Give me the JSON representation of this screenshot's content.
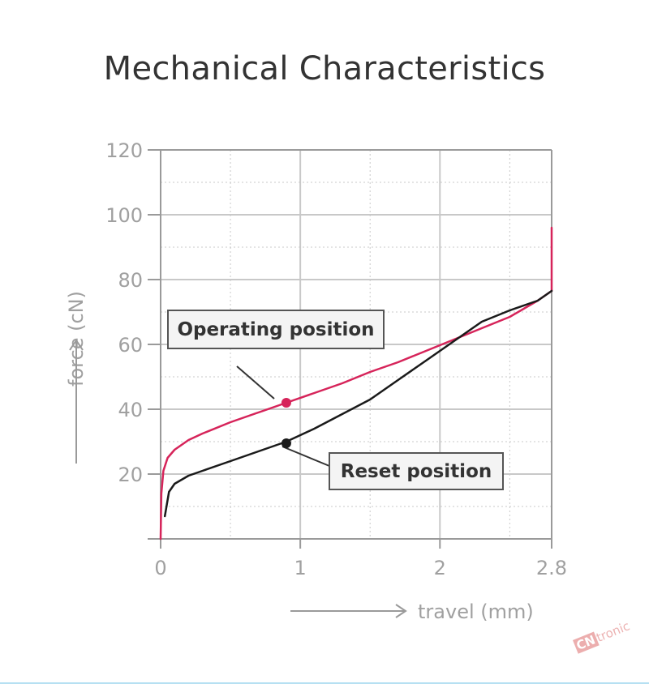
{
  "title": "Mechanical Characteristics",
  "watermark": {
    "prefix": "CN",
    "suffix": "tronic"
  },
  "colors": {
    "operating": "#d6245a",
    "reset": "#1a1a1a",
    "grid": "#c8c8c8",
    "axis": "#9a9a9a",
    "ticks": "#a0a0a0"
  },
  "chart_data": {
    "type": "line",
    "title": "Mechanical Characteristics",
    "xlabel": "travel (mm)",
    "ylabel": "force (cN)",
    "xlim": [
      0,
      2.8
    ],
    "ylim": [
      0,
      120
    ],
    "x_ticks": [
      0,
      1,
      2,
      2.8
    ],
    "x_tick_labels": [
      "0",
      "1",
      "2",
      "2.8"
    ],
    "y_ticks": [
      20,
      40,
      60,
      80,
      100,
      120
    ],
    "y_tick_labels": [
      "20",
      "40",
      "60",
      "80",
      "100",
      "120"
    ],
    "grid": true,
    "series": [
      {
        "name": "Operating position",
        "color": "#d6245a",
        "x": [
          0.0,
          0.005,
          0.02,
          0.05,
          0.1,
          0.2,
          0.3,
          0.5,
          0.7,
          0.9,
          1.1,
          1.3,
          1.5,
          1.7,
          1.9,
          2.1,
          2.3,
          2.5,
          2.6,
          2.7,
          2.8,
          2.8
        ],
        "y": [
          0,
          14,
          21,
          25,
          27.5,
          30.5,
          32.5,
          36,
          39,
          42,
          45,
          48,
          51.5,
          54.5,
          58,
          61.5,
          65,
          68.5,
          71,
          73.5,
          76.5,
          96
        ]
      },
      {
        "name": "Reset position",
        "color": "#1a1a1a",
        "x": [
          0.03,
          0.06,
          0.1,
          0.2,
          0.3,
          0.5,
          0.7,
          0.9,
          1.1,
          1.3,
          1.5,
          1.7,
          1.9,
          2.1,
          2.3,
          2.5,
          2.7,
          2.8
        ],
        "y": [
          7,
          14.5,
          17,
          19.5,
          21,
          24,
          27,
          30,
          34,
          38.5,
          43,
          49,
          55,
          61,
          67,
          70.5,
          73.5,
          76.5
        ]
      }
    ],
    "annotations": [
      {
        "text": "Operating position",
        "x": 0.9,
        "y": 42,
        "series": "Operating position"
      },
      {
        "text": "Reset position",
        "x": 0.9,
        "y": 29.5,
        "series": "Reset position"
      }
    ]
  }
}
